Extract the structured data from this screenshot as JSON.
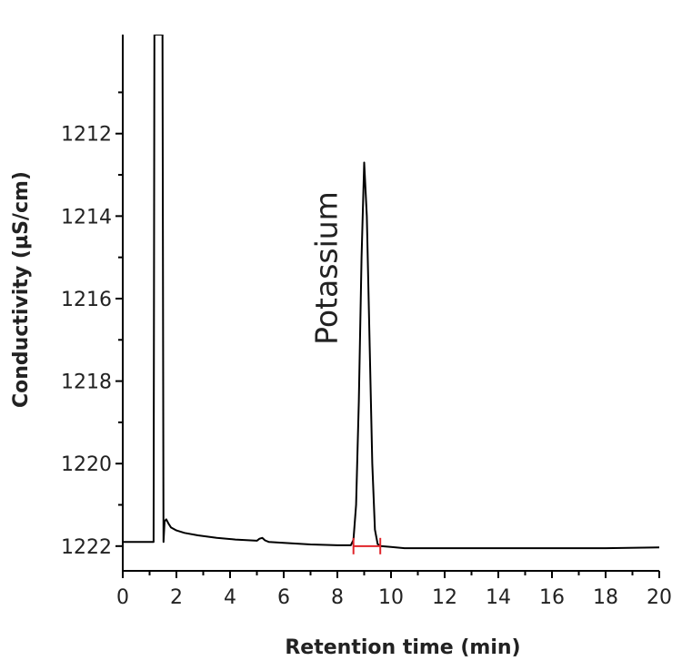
{
  "chart_data": {
    "type": "line",
    "title": "",
    "xlabel": "Retention time (min)",
    "ylabel": "Conductivity (µS/cm)",
    "xlim": [
      0,
      20
    ],
    "ylim": [
      1222.6,
      1209.6
    ],
    "y_axis_inverted": true,
    "x_ticks": [
      0,
      2,
      4,
      6,
      8,
      10,
      12,
      14,
      16,
      18,
      20
    ],
    "y_ticks": [
      1212,
      1214,
      1216,
      1218,
      1220,
      1222
    ],
    "x_tick_labels": [
      "0",
      "2",
      "4",
      "6",
      "8",
      "10",
      "12",
      "14",
      "16",
      "18",
      "20"
    ],
    "y_tick_labels": [
      "1212",
      "1214",
      "1216",
      "1218",
      "1220",
      "1222"
    ],
    "grid": false,
    "line_color": "#000000",
    "marker_color": "#e0242a",
    "series": [
      {
        "name": "",
        "x": [
          0,
          0.9,
          1.15,
          1.18,
          1.22,
          1.28,
          1.35,
          1.42,
          1.48,
          1.52,
          1.56,
          1.62,
          1.7,
          1.8,
          2.0,
          2.3,
          2.8,
          3.5,
          4.2,
          5.0,
          5.1,
          5.2,
          5.3,
          5.45,
          6.0,
          7.0,
          8.0,
          8.5,
          8.6,
          8.7,
          8.8,
          8.9,
          9.0,
          9.1,
          9.2,
          9.3,
          9.4,
          9.5,
          9.6,
          10.0,
          10.5,
          11.0,
          12.0,
          14.0,
          16.0,
          18.0,
          20.0
        ],
        "y": [
          1221.9,
          1221.9,
          1221.9,
          1209.6,
          1209.6,
          1209.6,
          1209.6,
          1209.6,
          1209.6,
          1221.9,
          1221.4,
          1221.35,
          1221.45,
          1221.55,
          1221.62,
          1221.68,
          1221.74,
          1221.8,
          1221.84,
          1221.87,
          1221.82,
          1221.8,
          1221.86,
          1221.9,
          1221.92,
          1221.96,
          1221.98,
          1221.98,
          1221.85,
          1221.0,
          1218.5,
          1215.0,
          1212.7,
          1214.0,
          1217.0,
          1220.0,
          1221.6,
          1221.95,
          1222.0,
          1222.02,
          1222.05,
          1222.05,
          1222.05,
          1222.05,
          1222.05,
          1222.05,
          1222.03
        ]
      }
    ],
    "annotations": [
      {
        "text": "Potassium",
        "x": 9.0,
        "y": 1213.4,
        "orientation": "vertical"
      }
    ],
    "integration_marks": [
      {
        "x": 8.6,
        "y": 1222.0
      },
      {
        "x": 9.6,
        "y": 1222.0
      }
    ]
  }
}
